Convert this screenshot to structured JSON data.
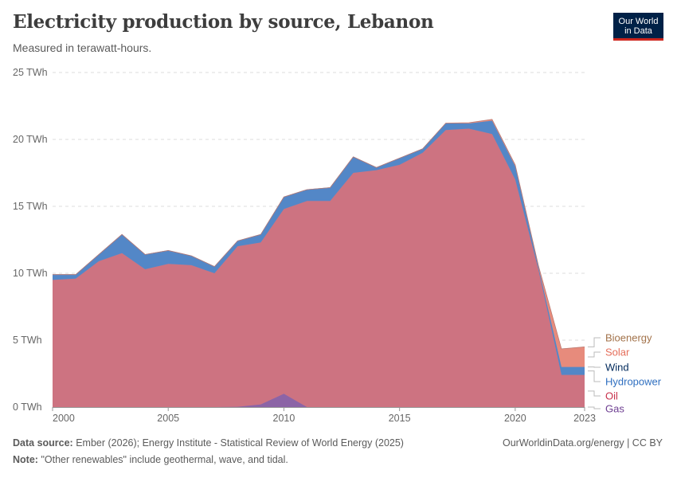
{
  "header": {
    "title": "Electricity production by source, Lebanon",
    "subtitle": "Measured in terawatt-hours.",
    "logo": "Our World in Data"
  },
  "footer": {
    "source_label": "Data source:",
    "source_text": "Ember (2026); Energy Institute - Statistical Review of World Energy (2025)",
    "note_label": "Note:",
    "note_text": "\"Other renewables\" include geothermal, wave, and tidal.",
    "url": "OurWorldinData.org/energy | CC BY"
  },
  "chart_data": {
    "type": "area",
    "stacked": true,
    "unit": "TWh",
    "x": [
      2000,
      2001,
      2002,
      2003,
      2004,
      2005,
      2006,
      2007,
      2008,
      2009,
      2010,
      2011,
      2012,
      2013,
      2014,
      2015,
      2016,
      2017,
      2018,
      2019,
      2020,
      2021,
      2022,
      2023
    ],
    "xticks": [
      "2000",
      "2005",
      "2010",
      "2015",
      "2020",
      "2023"
    ],
    "xtick_values": [
      2000,
      2005,
      2010,
      2015,
      2020,
      2023
    ],
    "yticks": [
      "0 TWh",
      "5 TWh",
      "10 TWh",
      "15 TWh",
      "20 TWh",
      "25 TWh"
    ],
    "ytick_values": [
      0,
      5,
      10,
      15,
      20,
      25
    ],
    "ylim": [
      0,
      25
    ],
    "grid": true,
    "legend_placement": "right",
    "series": [
      {
        "name": "Gas",
        "color": "#8c64a6",
        "label_color": "#6d3e91",
        "values": [
          0,
          0,
          0,
          0,
          0,
          0,
          0,
          0,
          0.02,
          0.2,
          1.0,
          0,
          0,
          0,
          0,
          0,
          0,
          0,
          0,
          0,
          0,
          0,
          0,
          0
        ]
      },
      {
        "name": "Oil",
        "color": "#cd7381",
        "label_color": "#c8314b",
        "values": [
          9.5,
          9.6,
          10.9,
          11.5,
          10.3,
          10.7,
          10.6,
          10.0,
          12.0,
          12.1,
          13.8,
          15.4,
          15.4,
          17.5,
          17.7,
          18.1,
          19.0,
          20.7,
          20.8,
          20.4,
          17.0,
          10.3,
          2.4,
          2.4
        ]
      },
      {
        "name": "Hydropower",
        "color": "#5387c7",
        "label_color": "#2f6fc0",
        "values": [
          0.4,
          0.3,
          0.5,
          1.4,
          1.1,
          1.0,
          0.7,
          0.5,
          0.4,
          0.6,
          0.9,
          0.85,
          1.0,
          1.2,
          0.2,
          0.5,
          0.3,
          0.5,
          0.4,
          1.0,
          1.0,
          0.2,
          0.6,
          0.6
        ]
      },
      {
        "name": "Wind",
        "color": "#002c5a",
        "label_color": "#00295b",
        "values": [
          0,
          0,
          0,
          0,
          0,
          0,
          0,
          0,
          0,
          0,
          0,
          0,
          0,
          0,
          0,
          0,
          0,
          0,
          0,
          0,
          0,
          0,
          0,
          0
        ]
      },
      {
        "name": "Solar",
        "color": "#e78b7c",
        "label_color": "#e56e5a",
        "values": [
          0,
          0,
          0,
          0,
          0,
          0,
          0,
          0,
          0,
          0,
          0,
          0,
          0,
          0,
          0,
          0,
          0,
          0.02,
          0.05,
          0.1,
          0.1,
          0.1,
          1.35,
          1.5
        ]
      },
      {
        "name": "Bioenergy",
        "color": "#b88a5e",
        "label_color": "#a2724a",
        "values": [
          0,
          0,
          0,
          0,
          0,
          0,
          0,
          0,
          0,
          0,
          0,
          0,
          0,
          0,
          0,
          0,
          0,
          0,
          0,
          0,
          0,
          0,
          0,
          0
        ]
      }
    ]
  }
}
